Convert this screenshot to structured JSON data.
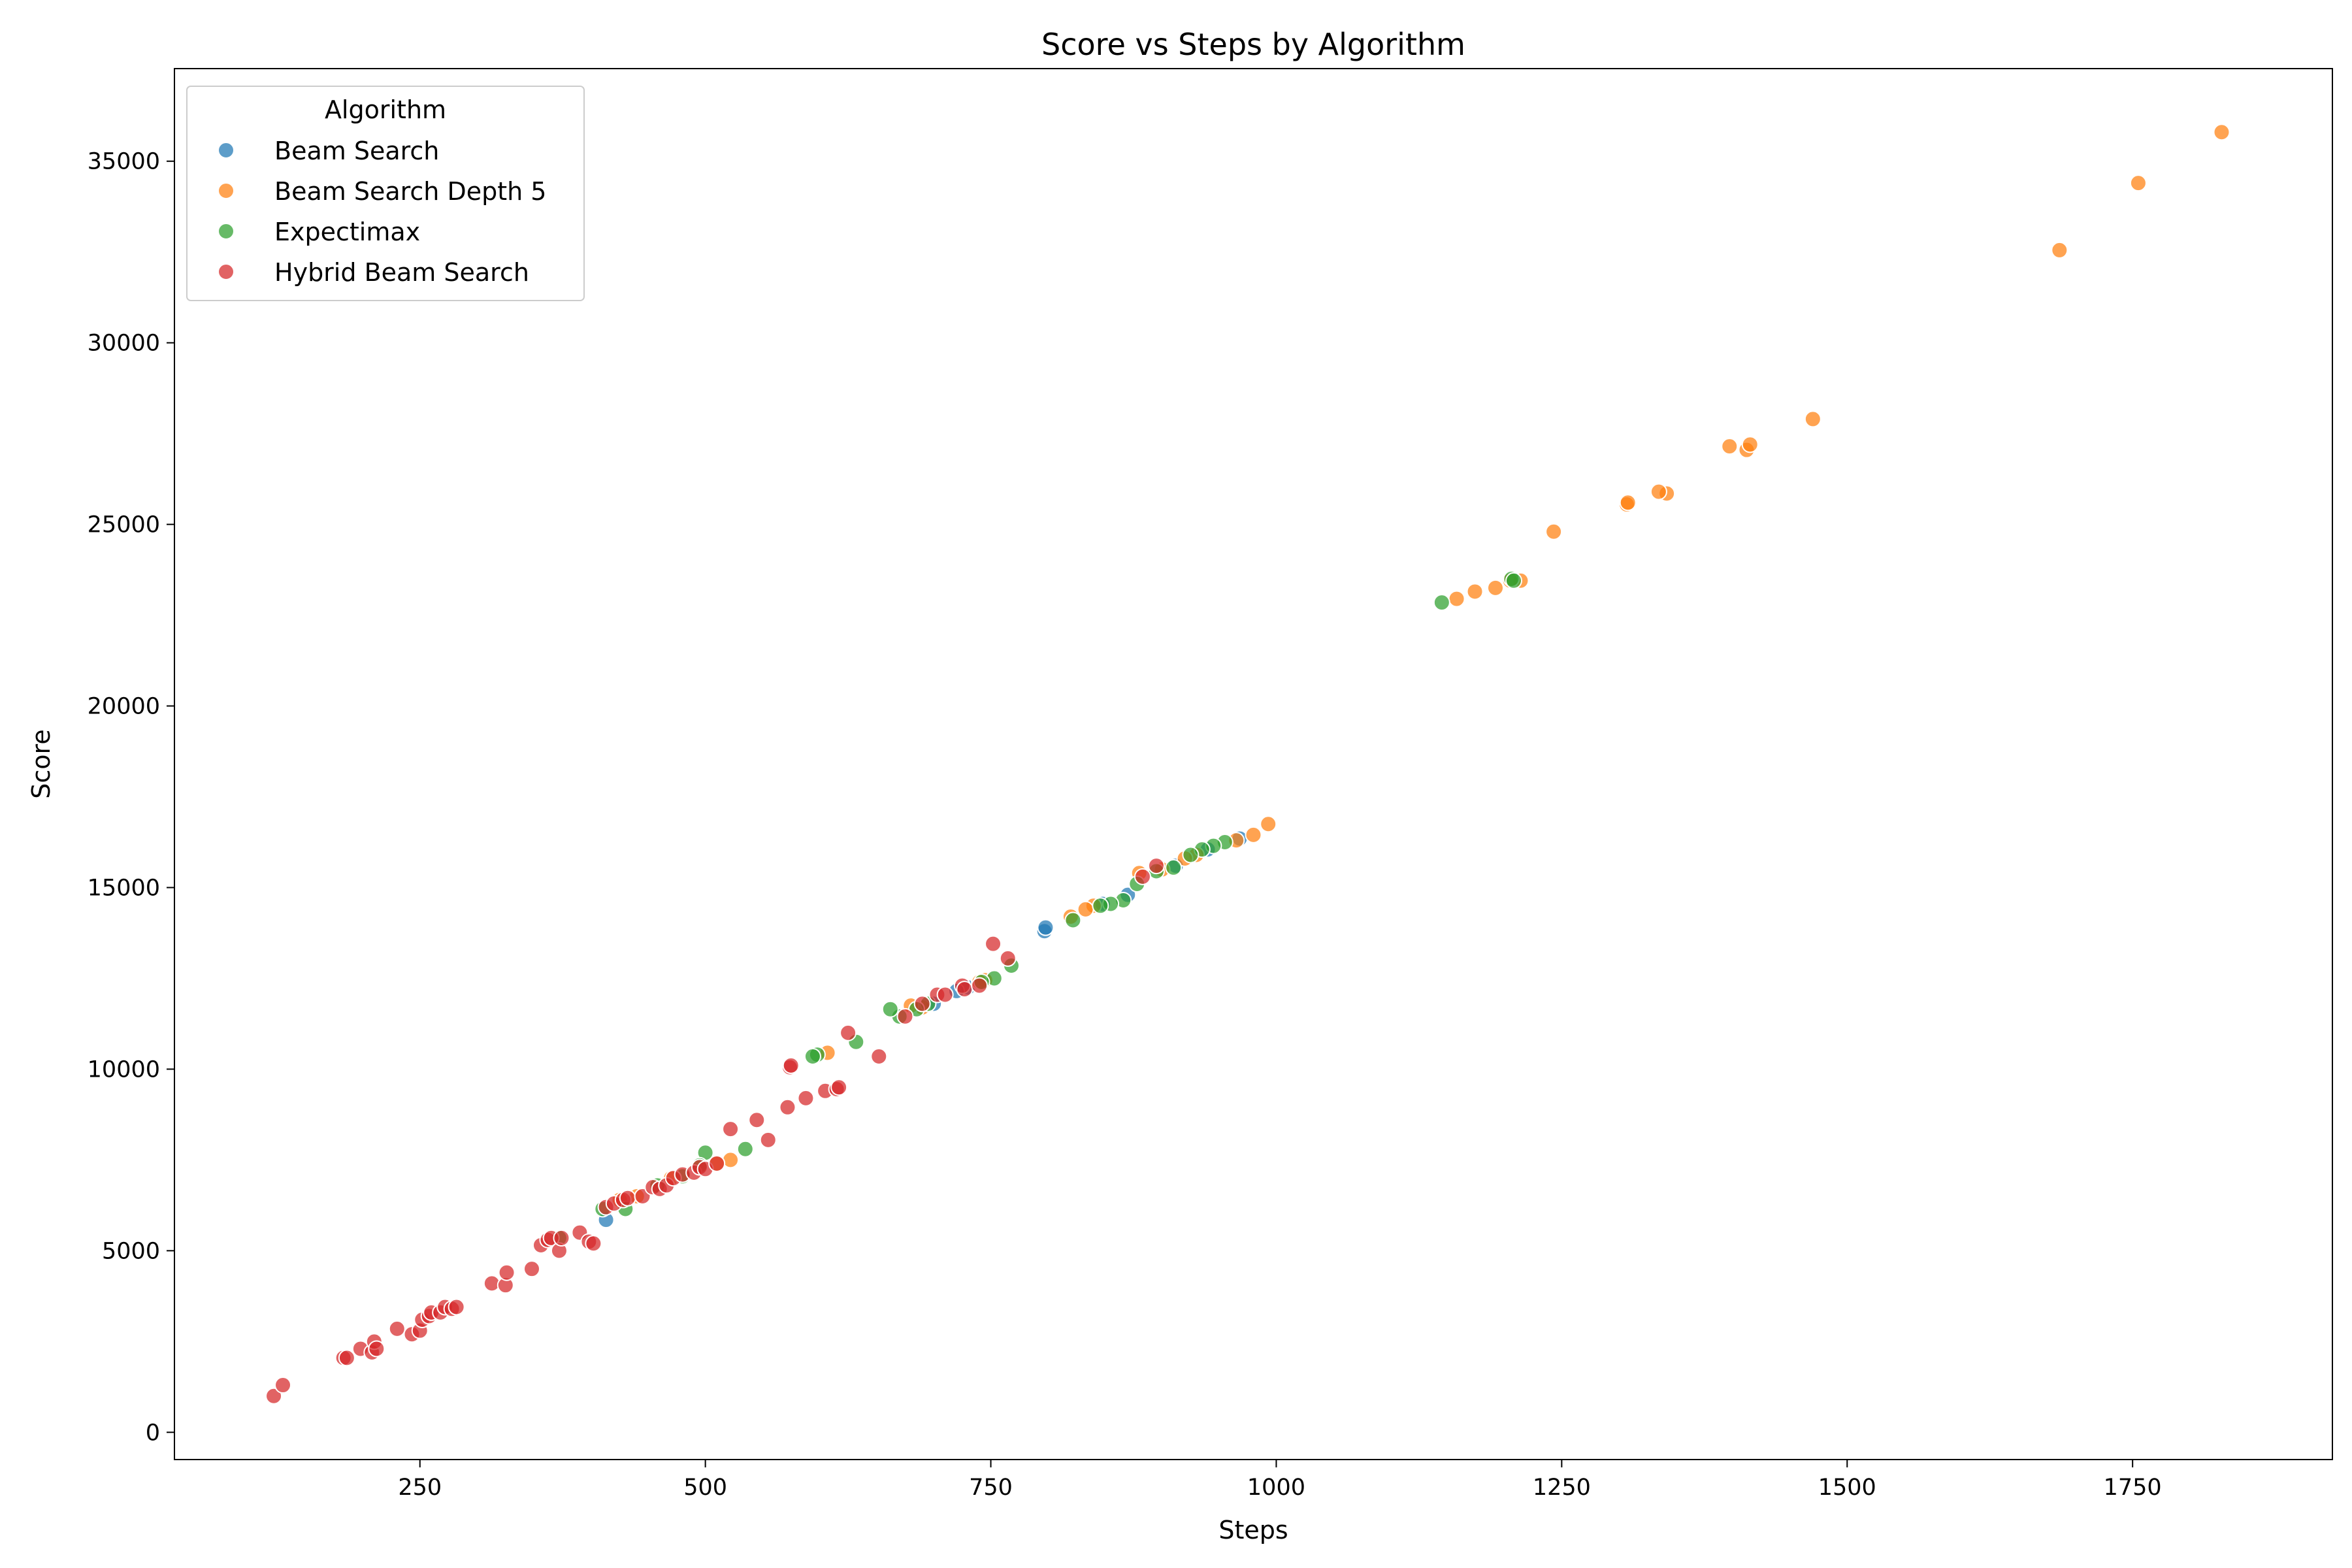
{
  "chart_data": {
    "type": "scatter",
    "title": "Score vs Steps by Algorithm",
    "xlabel": "Steps",
    "ylabel": "Score",
    "xlim": [
      35,
      1925
    ],
    "ylim": [
      -750,
      37550
    ],
    "xticks": [
      250,
      500,
      750,
      1000,
      1250,
      1500,
      1750
    ],
    "yticks": [
      0,
      5000,
      10000,
      15000,
      20000,
      25000,
      30000,
      35000
    ],
    "grid": false,
    "legend": {
      "title": "Algorithm",
      "placement": "top-left"
    },
    "series": [
      {
        "name": "Beam Search",
        "color": "#1f77b4",
        "points": [
          [
            413,
            5850
          ],
          [
            797,
            13800
          ],
          [
            798,
            13900
          ],
          [
            848,
            14550
          ],
          [
            870,
            14800
          ],
          [
            912,
            15600
          ],
          [
            940,
            16050
          ],
          [
            968,
            16350
          ],
          [
            730,
            12250
          ],
          [
            720,
            12150
          ],
          [
            700,
            11800
          ]
        ]
      },
      {
        "name": "Beam Search Depth 5",
        "color": "#ff7f0e",
        "points": [
          [
            1828,
            35800
          ],
          [
            1755,
            34400
          ],
          [
            1686,
            32550
          ],
          [
            1470,
            27900
          ],
          [
            1412,
            27050
          ],
          [
            1415,
            27200
          ],
          [
            1397,
            27150
          ],
          [
            1342,
            25850
          ],
          [
            1335,
            25900
          ],
          [
            1307,
            25550
          ],
          [
            1308,
            25600
          ],
          [
            1243,
            24800
          ],
          [
            1214,
            23450
          ],
          [
            1205,
            23450
          ],
          [
            1192,
            23250
          ],
          [
            1174,
            23150
          ],
          [
            1158,
            22950
          ],
          [
            993,
            16750
          ],
          [
            980,
            16450
          ],
          [
            965,
            16300
          ],
          [
            930,
            15900
          ],
          [
            920,
            15800
          ],
          [
            900,
            15500
          ],
          [
            880,
            15400
          ],
          [
            840,
            14500
          ],
          [
            833,
            14400
          ],
          [
            820,
            14200
          ],
          [
            745,
            12450
          ],
          [
            740,
            12400
          ],
          [
            690,
            11700
          ],
          [
            680,
            11750
          ],
          [
            607,
            10450
          ],
          [
            522,
            7500
          ],
          [
            510,
            7400
          ],
          [
            440,
            6500
          ],
          [
            425,
            6400
          ],
          [
            470,
            7000
          ]
        ]
      },
      {
        "name": "Expectimax",
        "color": "#2ca02c",
        "points": [
          [
            1145,
            22850
          ],
          [
            1206,
            23500
          ],
          [
            1208,
            23450
          ],
          [
            955,
            16250
          ],
          [
            945,
            16150
          ],
          [
            935,
            16050
          ],
          [
            925,
            15900
          ],
          [
            910,
            15550
          ],
          [
            895,
            15450
          ],
          [
            878,
            15100
          ],
          [
            866,
            14650
          ],
          [
            855,
            14550
          ],
          [
            846,
            14500
          ],
          [
            822,
            14100
          ],
          [
            768,
            12850
          ],
          [
            753,
            12500
          ],
          [
            742,
            12400
          ],
          [
            695,
            11800
          ],
          [
            685,
            11650
          ],
          [
            670,
            11450
          ],
          [
            662,
            11650
          ],
          [
            632,
            10750
          ],
          [
            598,
            10400
          ],
          [
            594,
            10350
          ],
          [
            535,
            7800
          ],
          [
            500,
            7700
          ],
          [
            495,
            7350
          ],
          [
            480,
            7050
          ],
          [
            458,
            6800
          ],
          [
            430,
            6150
          ],
          [
            410,
            6150
          ],
          [
            372,
            5350
          ]
        ]
      },
      {
        "name": "Hybrid Beam Search",
        "color": "#d62728",
        "points": [
          [
            122,
            1000
          ],
          [
            130,
            1300
          ],
          [
            183,
            2050
          ],
          [
            186,
            2050
          ],
          [
            198,
            2300
          ],
          [
            208,
            2200
          ],
          [
            210,
            2500
          ],
          [
            212,
            2300
          ],
          [
            230,
            2850
          ],
          [
            243,
            2700
          ],
          [
            250,
            2800
          ],
          [
            252,
            3100
          ],
          [
            258,
            3200
          ],
          [
            260,
            3300
          ],
          [
            268,
            3300
          ],
          [
            272,
            3450
          ],
          [
            278,
            3400
          ],
          [
            282,
            3450
          ],
          [
            313,
            4100
          ],
          [
            325,
            4050
          ],
          [
            326,
            4400
          ],
          [
            348,
            4500
          ],
          [
            356,
            5150
          ],
          [
            362,
            5300
          ],
          [
            365,
            5350
          ],
          [
            372,
            5000
          ],
          [
            374,
            5350
          ],
          [
            390,
            5500
          ],
          [
            398,
            5250
          ],
          [
            402,
            5200
          ],
          [
            413,
            6200
          ],
          [
            420,
            6300
          ],
          [
            428,
            6400
          ],
          [
            432,
            6450
          ],
          [
            445,
            6500
          ],
          [
            454,
            6750
          ],
          [
            460,
            6700
          ],
          [
            466,
            6800
          ],
          [
            472,
            7000
          ],
          [
            480,
            7100
          ],
          [
            490,
            7150
          ],
          [
            495,
            7300
          ],
          [
            500,
            7250
          ],
          [
            510,
            7400
          ],
          [
            522,
            8350
          ],
          [
            545,
            8600
          ],
          [
            555,
            8050
          ],
          [
            572,
            8950
          ],
          [
            574,
            10050
          ],
          [
            575,
            10100
          ],
          [
            588,
            9200
          ],
          [
            605,
            9400
          ],
          [
            615,
            9450
          ],
          [
            617,
            9500
          ],
          [
            625,
            11000
          ],
          [
            652,
            10350
          ],
          [
            675,
            11450
          ],
          [
            690,
            11800
          ],
          [
            703,
            12050
          ],
          [
            710,
            12050
          ],
          [
            725,
            12300
          ],
          [
            727,
            12200
          ],
          [
            740,
            12300
          ],
          [
            752,
            13450
          ],
          [
            765,
            13050
          ],
          [
            883,
            15300
          ],
          [
            895,
            15600
          ]
        ]
      }
    ]
  }
}
